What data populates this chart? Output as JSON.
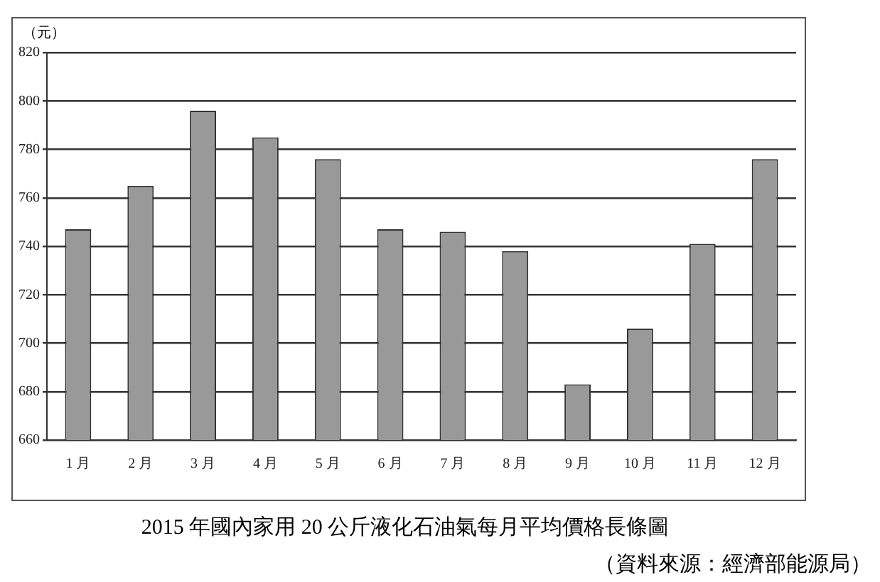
{
  "chart_data": {
    "type": "bar",
    "title": "2015 年國內家用 20 公斤液化石油氣每月平均價格長條圖",
    "ylabel": "（元）",
    "categories": [
      "1 月",
      "2 月",
      "3 月",
      "4 月",
      "5 月",
      "6 月",
      "7 月",
      "8 月",
      "9 月",
      "10 月",
      "11 月",
      "12 月"
    ],
    "values": [
      747,
      765,
      796,
      785,
      776,
      747,
      746,
      738,
      683,
      706,
      741,
      776
    ],
    "color": "#999999",
    "ylim": [
      660,
      820
    ],
    "yticks": [
      660,
      680,
      700,
      720,
      740,
      760,
      780,
      800,
      820
    ],
    "grid": "y",
    "annotations": [
      "（資料來源：經濟部能源局）"
    ]
  }
}
